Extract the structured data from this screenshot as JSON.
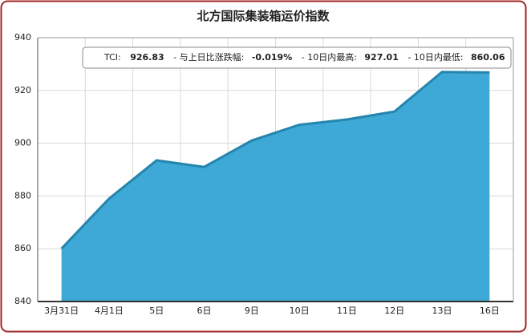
{
  "chart_data": {
    "type": "area",
    "title": "北方国际集装箱运价指数",
    "categories": [
      "3月31日",
      "4月1日",
      "5日",
      "6日",
      "9日",
      "10日",
      "11日",
      "12日",
      "13日",
      "16日"
    ],
    "values": [
      860.06,
      879,
      893.5,
      891,
      901,
      907,
      909,
      912,
      927.01,
      926.83
    ],
    "color": "#3ea8d6",
    "line_color": "#2485ad",
    "ylim": [
      840,
      940
    ],
    "yticks": [
      840,
      860,
      880,
      900,
      920,
      940
    ],
    "grid": true,
    "annotation": {
      "tci_label": "TCI:",
      "tci": "926.83",
      "change_label": "- 与上日比涨跌幅:",
      "change": "-0.019%",
      "high_label": "- 10日内最高:",
      "high": "927.01",
      "low_label": "- 10日内最低:",
      "low": "860.06"
    }
  }
}
